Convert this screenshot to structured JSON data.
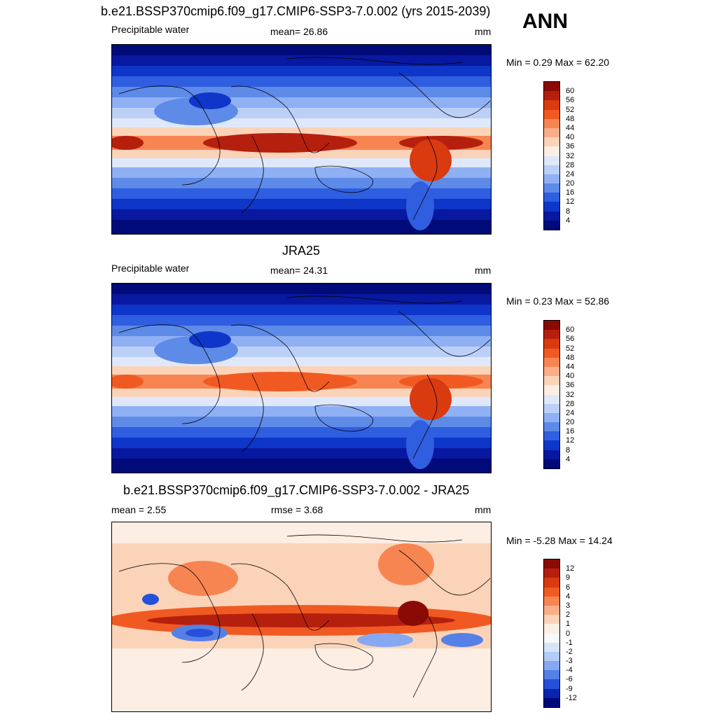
{
  "panel1": {
    "title": "b.e21.BSSP370cmip6.f09_g17.CMIP6-SSP3-7.0.002 (yrs 2015-2039)",
    "left_label": "Precipitable water",
    "mean": "mean=  26.86",
    "units": "mm",
    "minmax": "Min =   0.29 Max =  62.20",
    "levels": [
      "60",
      "56",
      "52",
      "48",
      "44",
      "40",
      "36",
      "32",
      "28",
      "24",
      "20",
      "16",
      "12",
      "8",
      "4"
    ]
  },
  "season": "ANN",
  "panel2": {
    "title": "JRA25",
    "left_label": "Precipitable water",
    "mean": "mean=  24.31",
    "units": "mm",
    "minmax": "Min =   0.23 Max =  52.86",
    "levels": [
      "60",
      "56",
      "52",
      "48",
      "44",
      "40",
      "36",
      "32",
      "28",
      "24",
      "20",
      "16",
      "12",
      "8",
      "4"
    ]
  },
  "panel3": {
    "title": "b.e21.BSSP370cmip6.f09_g17.CMIP6-SSP3-7.0.002 - JRA25",
    "left_label": "mean =   2.55",
    "rmse": "rmse =   3.68",
    "units": "mm",
    "minmax": "Min =  -5.28 Max =  14.24",
    "levels": [
      "12",
      "9",
      "6",
      "4",
      "3",
      "2",
      "1",
      "0",
      "-1",
      "-2",
      "-3",
      "-4",
      "-6",
      "-9",
      "-12"
    ]
  },
  "colors": {
    "abs_scale": [
      "#8a0a06",
      "#b5200e",
      "#d93a10",
      "#f05a22",
      "#f78552",
      "#f9ad88",
      "#fbd3b8",
      "#fdeee4",
      "#dfe8fb",
      "#bcd0f7",
      "#8fb0f3",
      "#5e8ae8",
      "#2f5ee0",
      "#0e36c8",
      "#0818a0",
      "#000a78"
    ],
    "diff_scale": [
      "#8a0a06",
      "#b5200e",
      "#d93a10",
      "#f05a22",
      "#f78552",
      "#f9ad88",
      "#fbd3b8",
      "#fdeee4",
      "#f8f8f8",
      "#d6e4fb",
      "#b3cbf7",
      "#86a8f1",
      "#5680e6",
      "#2750da",
      "#0a24b0",
      "#000a78"
    ]
  }
}
